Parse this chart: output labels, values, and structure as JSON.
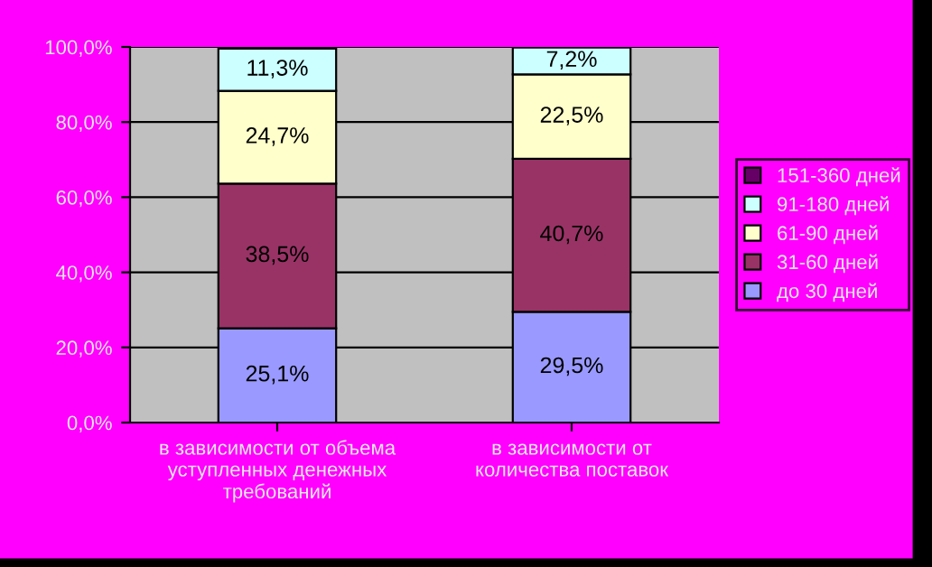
{
  "chart_data": {
    "type": "bar",
    "stacked": true,
    "categories": [
      "в зависимости от объема уступленных денежных требований",
      "в зависимости от количества поставок"
    ],
    "series": [
      {
        "name": "до 30 дней",
        "color": "#9999ff",
        "values": [
          25.1,
          29.5
        ],
        "value_labels": [
          "25,1%",
          "29,5%"
        ]
      },
      {
        "name": "31-60 дней",
        "color": "#993366",
        "values": [
          38.5,
          40.7
        ],
        "value_labels": [
          "38,5%",
          "40,7%"
        ]
      },
      {
        "name": "61-90 дней",
        "color": "#ffffcc",
        "values": [
          24.7,
          22.5
        ],
        "value_labels": [
          "24,7%",
          "22,5%"
        ]
      },
      {
        "name": "91-180 дней",
        "color": "#ccffff",
        "values": [
          11.3,
          7.2
        ],
        "value_labels": [
          "11,3%",
          "7,2%"
        ]
      },
      {
        "name": "151-360 дней",
        "color": "#660066",
        "values": [
          null,
          null
        ]
      }
    ],
    "ylim": [
      0,
      100
    ],
    "yticks": [
      {
        "value": 0,
        "label": "0,0%"
      },
      {
        "value": 20,
        "label": "20,0%"
      },
      {
        "value": 40,
        "label": "40,0%"
      },
      {
        "value": 60,
        "label": "60,0%"
      },
      {
        "value": 80,
        "label": "80,0%"
      },
      {
        "value": 100,
        "label": "100,0%"
      }
    ],
    "grid": "y",
    "legend": "right"
  }
}
